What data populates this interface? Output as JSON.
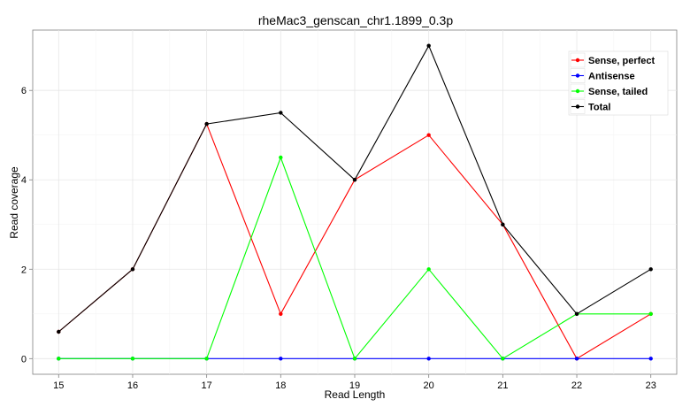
{
  "chart_data": {
    "type": "line",
    "title": "rheMac3_genscan_chr1.1899_0.3p",
    "xlabel": "Read Length",
    "ylabel": "Read coverage",
    "x": [
      15,
      16,
      17,
      18,
      19,
      20,
      21,
      22,
      23
    ],
    "xticks": [
      "15",
      "16",
      "17",
      "18",
      "19",
      "20",
      "21",
      "22",
      "23"
    ],
    "yticks": [
      "0",
      "2",
      "4",
      "6"
    ],
    "xlim": [
      14.65,
      23.35
    ],
    "ylim": [
      -0.35,
      7.35
    ],
    "grid": true,
    "legend_position": "top-right",
    "series": [
      {
        "name": "Sense, perfect",
        "color": "#ff0000",
        "values": [
          0.6,
          2,
          5.25,
          1,
          4,
          5,
          3,
          0,
          1
        ]
      },
      {
        "name": "Antisense",
        "color": "#0000ff",
        "values": [
          0,
          0,
          0,
          0,
          0,
          0,
          0,
          0,
          0
        ]
      },
      {
        "name": "Sense, tailed",
        "color": "#00ff00",
        "values": [
          0,
          0,
          0,
          4.5,
          0,
          2,
          0,
          1,
          1
        ]
      },
      {
        "name": "Total",
        "color": "#000000",
        "values": [
          0.6,
          2,
          5.25,
          5.5,
          4,
          7,
          3,
          1,
          2
        ]
      }
    ]
  }
}
